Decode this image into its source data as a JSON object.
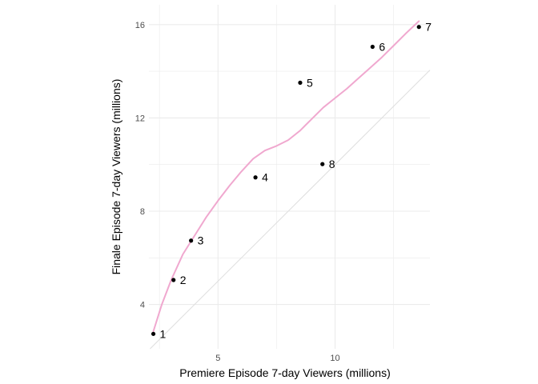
{
  "chart_data": {
    "type": "scatter",
    "xlabel": "Premiere Episode 7-day Viewers (millions)",
    "ylabel": "Finale Episode 7-day Viewers (millions)",
    "xlim": [
      2.05,
      14.05
    ],
    "ylim": [
      2.1,
      16.85
    ],
    "x_ticks": [
      5,
      10
    ],
    "y_ticks": [
      4,
      8,
      12,
      16
    ],
    "grid": true,
    "legend": "none",
    "points": [
      {
        "label": "1",
        "x": 2.24,
        "y": 2.74
      },
      {
        "label": "2",
        "x": 3.1,
        "y": 5.05
      },
      {
        "label": "3",
        "x": 3.85,
        "y": 6.74
      },
      {
        "label": "4",
        "x": 6.6,
        "y": 9.45
      },
      {
        "label": "5",
        "x": 8.51,
        "y": 13.51
      },
      {
        "label": "6",
        "x": 11.6,
        "y": 15.05
      },
      {
        "label": "7",
        "x": 13.58,
        "y": 15.9
      },
      {
        "label": "8",
        "x": 9.46,
        "y": 10.02
      }
    ],
    "smooth_curve": [
      [
        2.24,
        2.85
      ],
      [
        2.6,
        4.0
      ],
      [
        3.0,
        5.05
      ],
      [
        3.5,
        6.15
      ],
      [
        4.0,
        6.95
      ],
      [
        4.5,
        7.75
      ],
      [
        5.0,
        8.45
      ],
      [
        5.5,
        9.1
      ],
      [
        6.0,
        9.7
      ],
      [
        6.5,
        10.25
      ],
      [
        7.0,
        10.6
      ],
      [
        7.5,
        10.8
      ],
      [
        8.0,
        11.05
      ],
      [
        8.5,
        11.45
      ],
      [
        9.0,
        11.95
      ],
      [
        9.5,
        12.45
      ],
      [
        10.0,
        12.85
      ],
      [
        10.5,
        13.25
      ],
      [
        11.0,
        13.7
      ],
      [
        11.5,
        14.15
      ],
      [
        12.0,
        14.6
      ],
      [
        12.5,
        15.1
      ],
      [
        13.0,
        15.6
      ],
      [
        13.58,
        16.15
      ]
    ],
    "reference_line": {
      "type": "identity",
      "slope": 1,
      "intercept": 0
    },
    "colors": {
      "point": "#000000",
      "smooth": "#f0a8cf",
      "reference": "#dedede",
      "grid": "#ebebeb"
    }
  }
}
